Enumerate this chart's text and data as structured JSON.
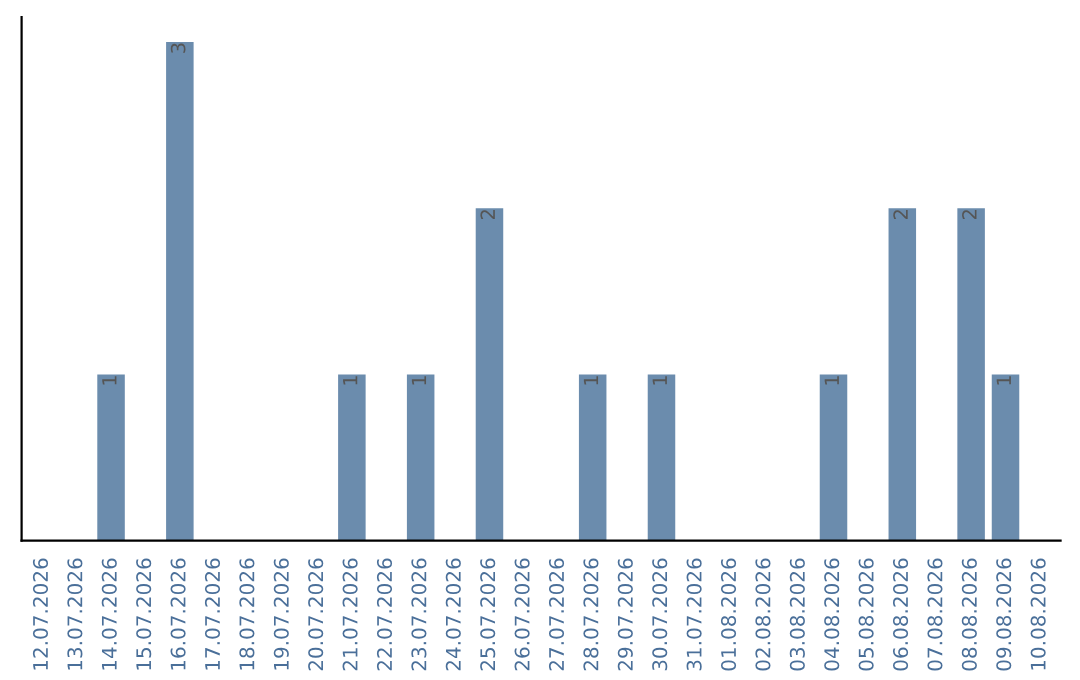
{
  "chart_data": {
    "type": "bar",
    "categories": [
      "12.07.2026",
      "13.07.2026",
      "14.07.2026",
      "15.07.2026",
      "16.07.2026",
      "17.07.2026",
      "18.07.2026",
      "19.07.2026",
      "20.07.2026",
      "21.07.2026",
      "22.07.2026",
      "23.07.2026",
      "24.07.2026",
      "25.07.2026",
      "26.07.2026",
      "27.07.2026",
      "28.07.2026",
      "29.07.2026",
      "30.07.2026",
      "31.07.2026",
      "01.08.2026",
      "02.08.2026",
      "03.08.2026",
      "04.08.2026",
      "05.08.2026",
      "06.08.2026",
      "07.08.2026",
      "08.08.2026",
      "09.08.2026",
      "10.08.2026"
    ],
    "values": [
      0,
      0,
      1,
      0,
      3,
      0,
      0,
      0,
      0,
      1,
      0,
      1,
      0,
      2,
      0,
      0,
      1,
      0,
      1,
      0,
      0,
      0,
      0,
      1,
      0,
      2,
      0,
      2,
      1,
      0
    ],
    "value_labels": [
      null,
      null,
      "1",
      null,
      "3",
      null,
      null,
      null,
      null,
      "1",
      null,
      "1",
      null,
      "2",
      null,
      null,
      "1",
      null,
      "1",
      null,
      null,
      null,
      null,
      "1",
      null,
      "2",
      null,
      "2",
      "1",
      null
    ],
    "color": "#6b8cad",
    "tick_labels": "x",
    "grid": false,
    "legend": false
  }
}
